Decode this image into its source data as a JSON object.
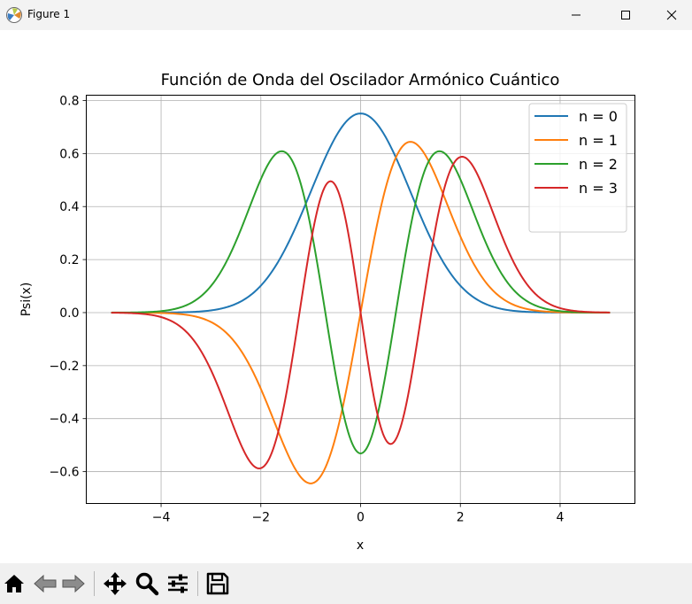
{
  "window": {
    "title": "Figure 1"
  },
  "colors": {
    "blue": "#1f77b4",
    "orange": "#ff7f0e",
    "green": "#2ca02c",
    "red": "#d62728"
  },
  "chart_data": {
    "type": "line",
    "title": "Función de Onda del Oscilador Armónico Cuántico",
    "xlabel": "x",
    "ylabel": "Psi(x)",
    "xlim": [
      -5.5,
      5.5
    ],
    "ylim": [
      -0.72,
      0.82
    ],
    "xticks": [
      -4,
      -2,
      0,
      2,
      4
    ],
    "xtick_labels": [
      "−4",
      "−2",
      "0",
      "2",
      "4"
    ],
    "yticks": [
      -0.6,
      -0.4,
      -0.2,
      0.0,
      0.2,
      0.4,
      0.6,
      0.8
    ],
    "ytick_labels": [
      "−0.6",
      "−0.4",
      "−0.2",
      "0.0",
      "0.2",
      "0.4",
      "0.6",
      "0.8"
    ],
    "grid": true,
    "legend_position": "top-right",
    "x_range": [
      -5,
      5
    ],
    "series": [
      {
        "name": "n = 0",
        "color": "#1f77b4",
        "x": [
          -5,
          -4,
          -3,
          -2.5,
          -2,
          -1.5,
          -1,
          -0.5,
          0,
          0.5,
          1,
          1.5,
          2,
          2.5,
          3,
          4,
          5
        ],
        "y": [
          0.0,
          0.0003,
          0.0084,
          0.033,
          0.102,
          0.244,
          0.456,
          0.663,
          0.751,
          0.663,
          0.456,
          0.244,
          0.102,
          0.033,
          0.0084,
          0.0003,
          0.0
        ]
      },
      {
        "name": "n = 1",
        "color": "#ff7f0e",
        "x": [
          -5,
          -4,
          -3,
          -2.5,
          -2,
          -1.5,
          -1,
          -0.5,
          0,
          0.5,
          1,
          1.5,
          2,
          2.5,
          3,
          4,
          5
        ],
        "y": [
          0.0,
          -0.0019,
          -0.036,
          -0.117,
          -0.288,
          -0.518,
          -0.644,
          -0.469,
          0.0,
          0.469,
          0.644,
          0.518,
          0.288,
          0.117,
          0.036,
          0.0019,
          0.0
        ]
      },
      {
        "name": "n = 2",
        "color": "#2ca02c",
        "x": [
          -5,
          -4,
          -3,
          -2.5,
          -2,
          -1.5,
          -1,
          -0.5,
          0,
          0.5,
          1,
          1.5,
          2,
          2.5,
          3,
          4,
          5
        ],
        "y": [
          0.0,
          0.006,
          0.087,
          0.21,
          0.437,
          0.604,
          0.323,
          -0.234,
          -0.531,
          -0.234,
          0.323,
          0.604,
          0.437,
          0.21,
          0.087,
          0.006,
          0.0
        ]
      },
      {
        "name": "n = 3",
        "color": "#d62728",
        "x": [
          -5,
          -4,
          -3,
          -2.5,
          -2,
          -1.5,
          -1,
          -0.5,
          0,
          0.5,
          1,
          1.5,
          2,
          2.5,
          3,
          4,
          5
        ],
        "y": [
          0.0,
          -0.017,
          -0.185,
          -0.375,
          -0.583,
          -0.301,
          0.373,
          0.474,
          0.0,
          -0.474,
          -0.373,
          0.301,
          0.583,
          0.375,
          0.185,
          0.017,
          0.0
        ]
      }
    ]
  },
  "toolbar": {
    "buttons": [
      "home-icon",
      "back-icon",
      "forward-icon",
      "pan-icon",
      "zoom-icon",
      "configure-subplots-icon",
      "save-icon"
    ]
  }
}
